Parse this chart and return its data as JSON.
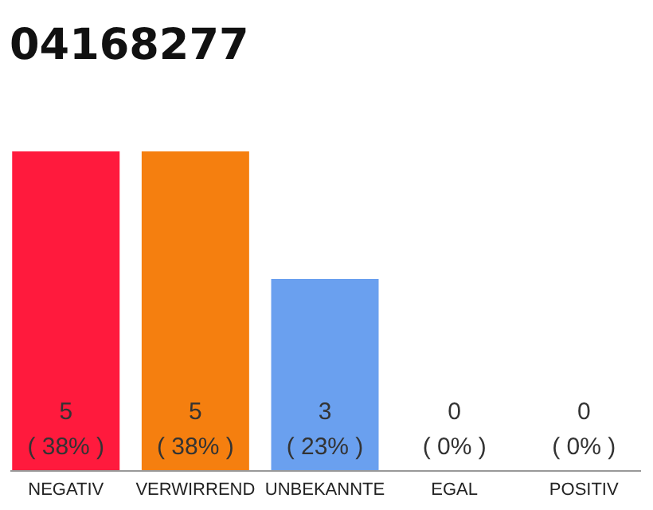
{
  "chart_data": {
    "type": "bar",
    "title": "04168277",
    "categories": [
      "NEGATIV",
      "VERWIRREND",
      "UNBEKANNTE",
      "EGAL",
      "POSITIV"
    ],
    "values": [
      5,
      5,
      3,
      0,
      0
    ],
    "colors": [
      "#ff1a3d",
      "#f57f0f",
      "#6aa0ef",
      "#9e9e9e",
      "#9e9e9e"
    ],
    "value_labels": [
      "5\n( 38% )",
      "5\n( 38% )",
      "3\n( 23% )",
      "0\n( 0% )",
      "0\n( 0% )"
    ]
  }
}
